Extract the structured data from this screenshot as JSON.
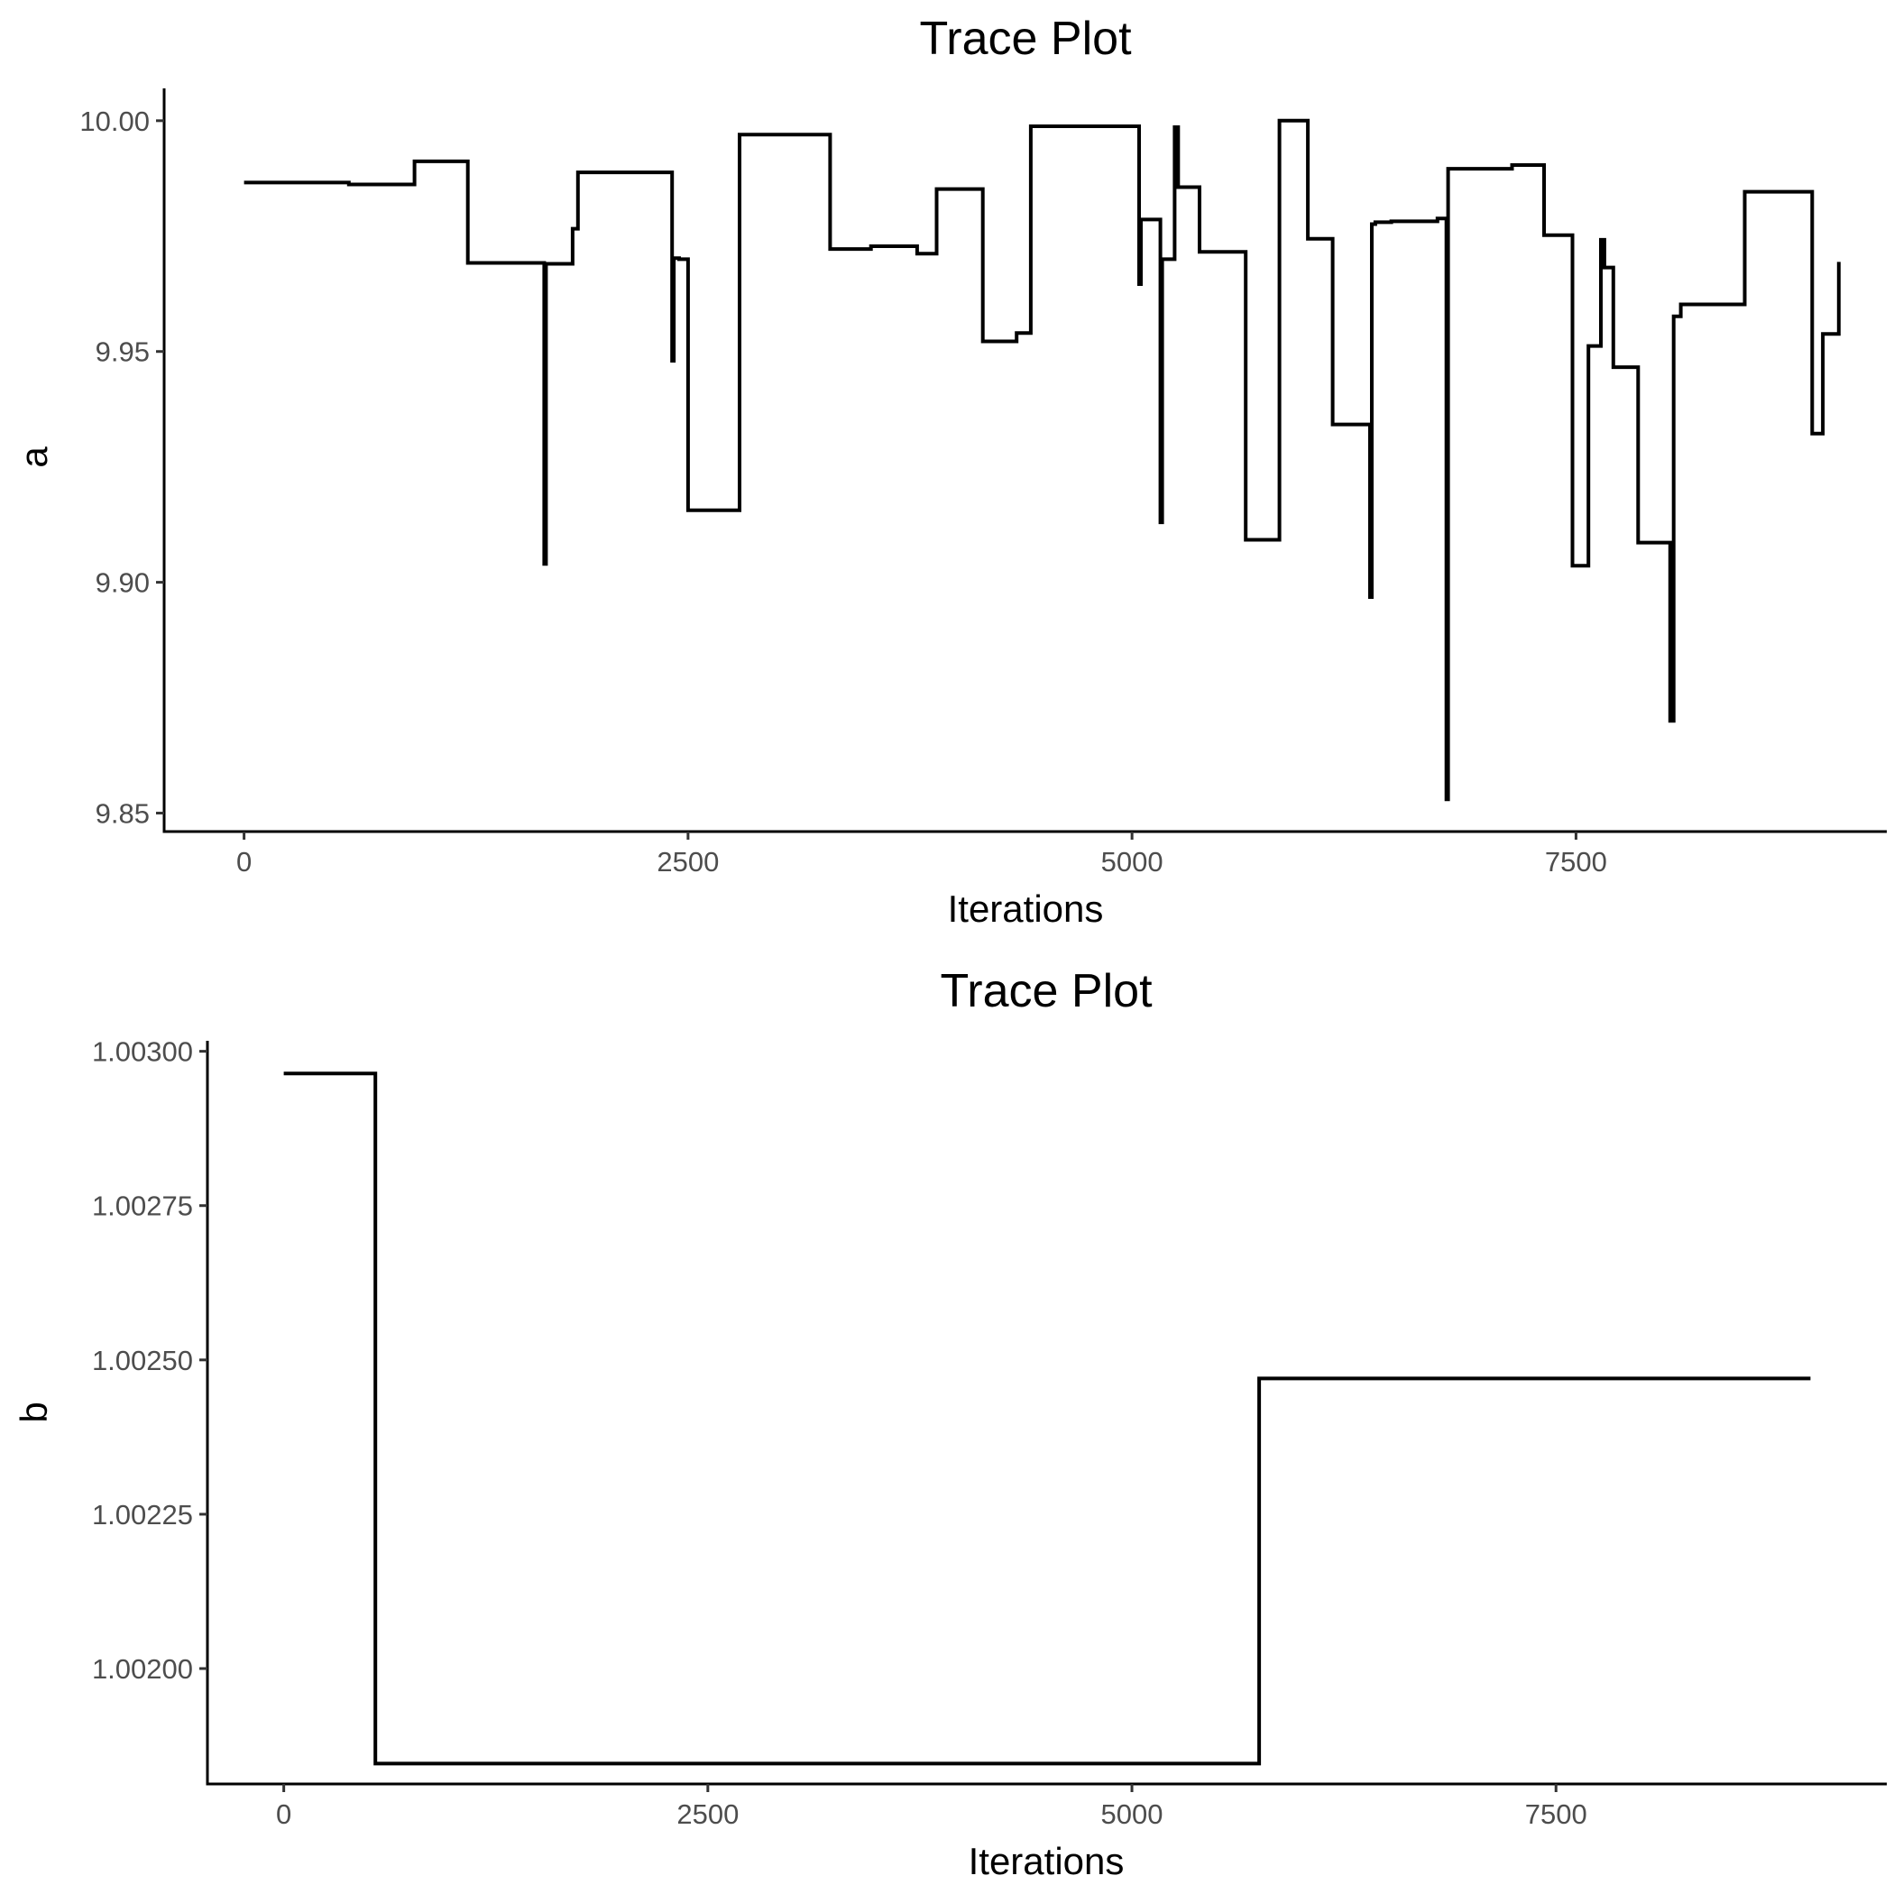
{
  "chart_data": [
    {
      "type": "line",
      "title": "Trace Plot",
      "xlabel": "Iterations",
      "ylabel": "a",
      "xlim": [
        -450,
        9250
      ],
      "ylim": [
        9.846,
        10.007
      ],
      "xticks": [
        0,
        2500,
        5000,
        7500
      ],
      "xtick_labels": [
        "0",
        "2500",
        "5000",
        "7500"
      ],
      "yticks": [
        9.85,
        9.9,
        9.95,
        10.0
      ],
      "ytick_labels": [
        "9.85",
        "9.90",
        "9.95",
        "10.00"
      ],
      "grid": false,
      "legend": "none",
      "step": true,
      "series": [
        {
          "x": [
            0,
            590,
            960,
            1260,
            1690,
            1700,
            1850,
            1880,
            2410,
            2420,
            2450,
            2500,
            2790,
            3300,
            3530,
            3790,
            3900,
            4160,
            4350,
            4430,
            5040,
            5050,
            5060,
            5160,
            5170,
            5240,
            5250,
            5260,
            5380,
            5640,
            5830,
            5990,
            6130,
            6340,
            6350,
            6370,
            6460,
            6720,
            6770,
            6780,
            7140,
            7320,
            7480,
            7570,
            7640,
            7660,
            7710,
            7850,
            8030,
            8050,
            8090,
            8450,
            8830,
            8890,
            8980
          ],
          "values": [
            9.9866,
            9.9862,
            9.9912,
            9.9692,
            9.904,
            9.969,
            9.9766,
            9.9888,
            9.948,
            9.9702,
            9.97,
            9.9156,
            9.997,
            9.9722,
            9.9728,
            9.9712,
            9.9852,
            9.9522,
            9.954,
            9.9988,
            9.9646,
            9.9786,
            9.9786,
            9.913,
            9.97,
            9.9986,
            9.9986,
            9.9856,
            9.9716,
            9.9092,
            10.0,
            9.9744,
            9.9342,
            9.8968,
            9.9776,
            9.978,
            9.9782,
            9.9788,
            9.853,
            9.9896,
            9.9904,
            9.9752,
            9.9036,
            9.9512,
            9.9742,
            9.9682,
            9.9466,
            9.9086,
            9.87,
            9.9576,
            9.9602,
            9.9846,
            9.9322,
            9.9538,
            9.9694
          ]
        }
      ]
    },
    {
      "type": "line",
      "title": "Trace Plot",
      "xlabel": "Iterations",
      "ylabel": "b",
      "xlim": [
        -450,
        9450
      ],
      "ylim": [
        1.001813,
        1.003017
      ],
      "xticks": [
        0,
        2500,
        5000,
        7500
      ],
      "xtick_labels": [
        "0",
        "2500",
        "5000",
        "7500"
      ],
      "yticks": [
        1.002,
        1.00225,
        1.0025,
        1.00275,
        1.003
      ],
      "ytick_labels": [
        "1.00200",
        "1.00225",
        "1.00250",
        "1.00275",
        "1.00300"
      ],
      "grid": false,
      "legend": "none",
      "step": true,
      "series": [
        {
          "x": [
            0,
            540,
            5750,
            9000
          ],
          "values": [
            1.002964,
            1.001846,
            1.00247,
            1.00247
          ]
        }
      ]
    }
  ]
}
